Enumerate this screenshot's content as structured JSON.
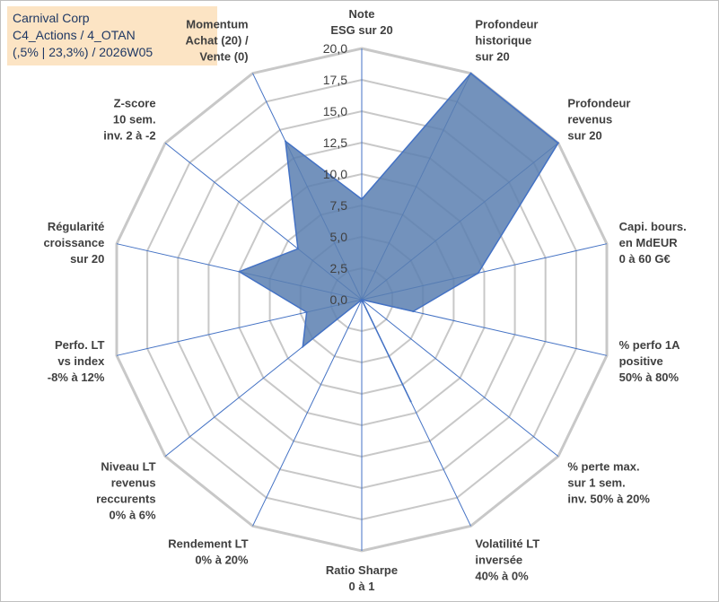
{
  "chart_data": {
    "type": "radar",
    "title_lines": [
      "Carnival Corp",
      "C4_Actions / 4_OTAN",
      "(,5% | 23,3%) / 2026W05"
    ],
    "r_range": [
      0,
      20
    ],
    "ticks": [
      "0,0",
      "2,5",
      "5,0",
      "7,5",
      "10,0",
      "12,5",
      "15,0",
      "17,5",
      "20,0"
    ],
    "tick_values": [
      0,
      2.5,
      5,
      7.5,
      10,
      12.5,
      15,
      17.5,
      20
    ],
    "grid": true,
    "fill_color": "#5b7fb0",
    "fill_opacity": 0.85,
    "line_color": "#4472c4",
    "grid_color": "#c8c8c8",
    "axes": [
      {
        "label": [
          "Note",
          "ESG sur 20"
        ],
        "value": 8.0
      },
      {
        "label": [
          "Profondeur",
          "historique",
          "sur 20"
        ],
        "value": 20.0
      },
      {
        "label": [
          "Profondeur",
          "revenus",
          "sur 20"
        ],
        "value": 20.0
      },
      {
        "label": [
          "Capi. bours.",
          "en MdEUR",
          "0 à 60 G€"
        ],
        "value": 9.5
      },
      {
        "label": [
          "% perfo 1A",
          "positive",
          "50% à 80%"
        ],
        "value": 4.2
      },
      {
        "label": [
          "% perte max.",
          "sur 1 sem.",
          "inv. 50% à 20%"
        ],
        "value": 0.0
      },
      {
        "label": [
          "Volatilité LT",
          "inversée",
          "40% à 0%"
        ],
        "value": 9.0
      },
      {
        "label": [
          "Ratio Sharpe",
          "0 à 1"
        ],
        "value": 0.0
      },
      {
        "label": [
          "Rendement LT",
          "0% à 20%"
        ],
        "value": 0.0
      },
      {
        "label": [
          "Niveau LT",
          "revenus",
          "reccurents",
          "0% à 6%"
        ],
        "value": 6.0
      },
      {
        "label": [
          "Perfo. LT",
          "vs index",
          "-8% à 12%"
        ],
        "value": 4.5
      },
      {
        "label": [
          "Régularité",
          "croissance",
          "sur 20"
        ],
        "value": 10.0
      },
      {
        "label": [
          "Z-score",
          "10 sem.",
          "inv. 2 à -2"
        ],
        "value": 6.5
      },
      {
        "label": [
          "Momentum",
          "Achat (20) /",
          "Vente (0)"
        ],
        "value": 14.0
      }
    ]
  }
}
